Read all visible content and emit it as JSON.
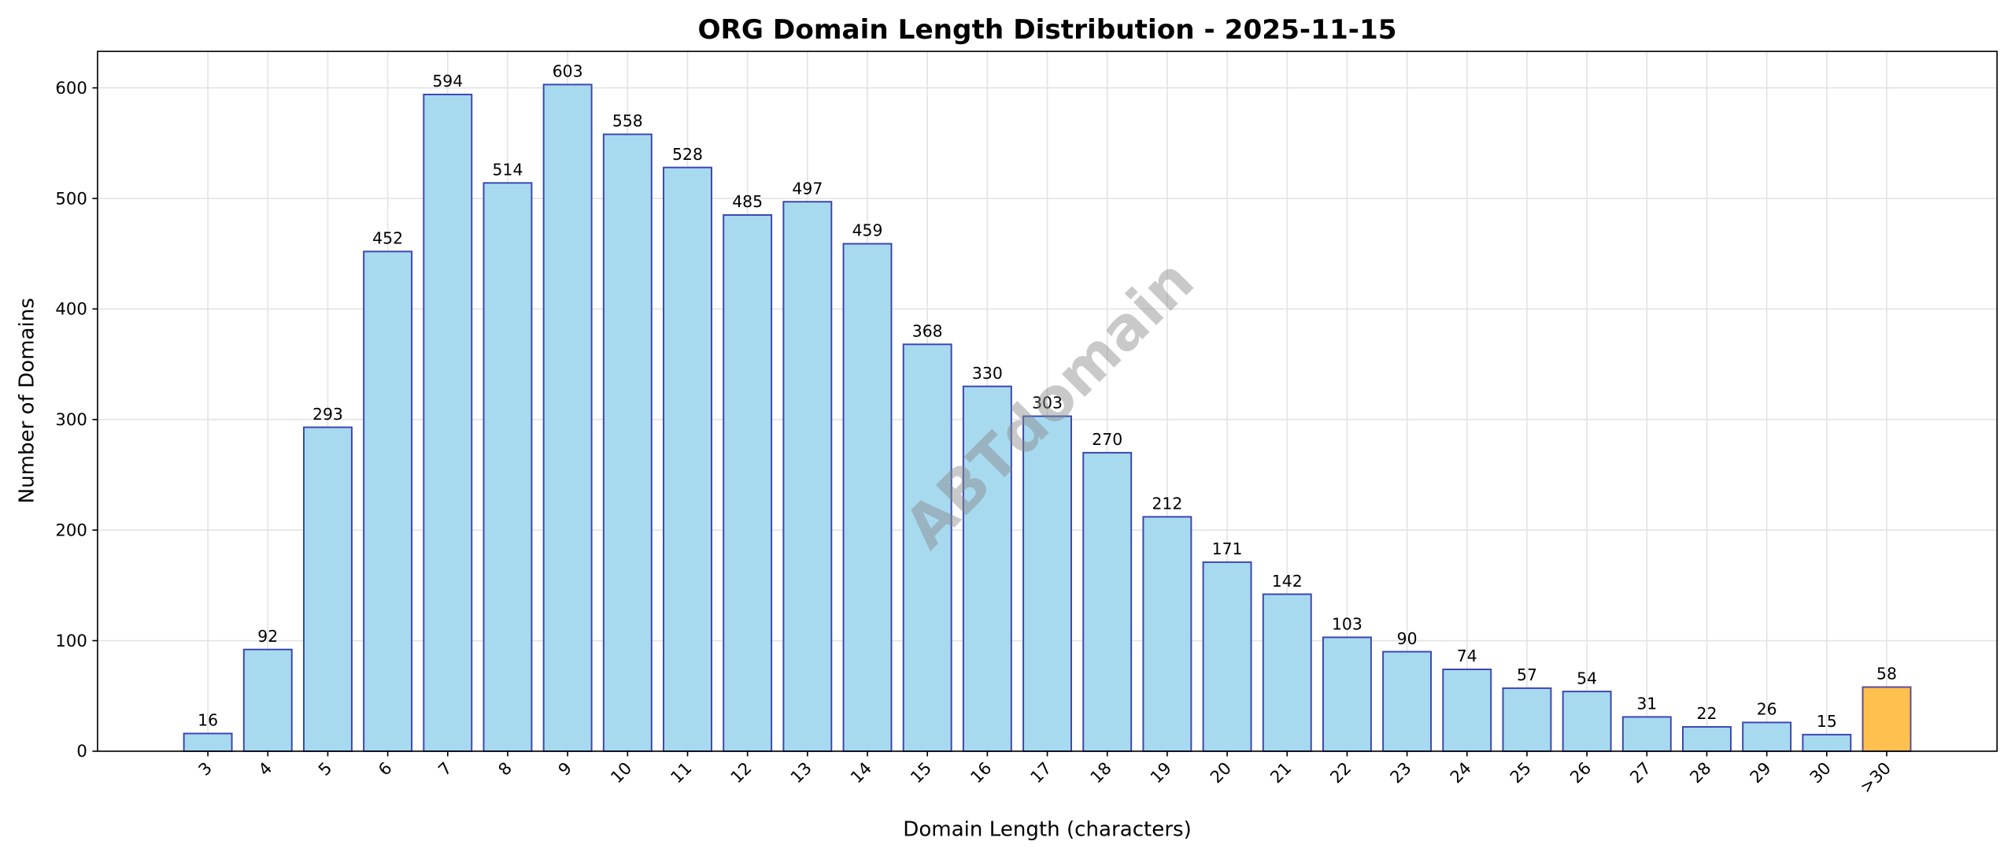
{
  "chart_data": {
    "type": "bar",
    "title": "ORG Domain Length Distribution - 2025-11-15",
    "xlabel": "Domain Length (characters)",
    "ylabel": "Number of Domains",
    "watermark": "ABTdomain",
    "categories": [
      "3",
      "4",
      "5",
      "6",
      "7",
      "8",
      "9",
      "10",
      "11",
      "12",
      "13",
      "14",
      "15",
      "16",
      "17",
      "18",
      "19",
      "20",
      "21",
      "22",
      "23",
      "24",
      "25",
      "26",
      "27",
      "28",
      "29",
      "30",
      ">30"
    ],
    "values": [
      16,
      92,
      293,
      452,
      594,
      514,
      603,
      558,
      528,
      485,
      497,
      459,
      368,
      330,
      303,
      270,
      212,
      171,
      142,
      103,
      90,
      74,
      57,
      54,
      31,
      22,
      26,
      15,
      58
    ],
    "highlighted_category": ">30",
    "ylim": [
      0,
      633
    ],
    "yticks": [
      0,
      100,
      200,
      300,
      400,
      500,
      600
    ],
    "grid": true,
    "colors": {
      "bar_fill": "#a8daef",
      "bar_edge": "#3b44b5",
      "highlight_fill": "#ffc04d",
      "highlight_edge": "#5a4aa0",
      "grid": "#e3e3e3"
    }
  }
}
